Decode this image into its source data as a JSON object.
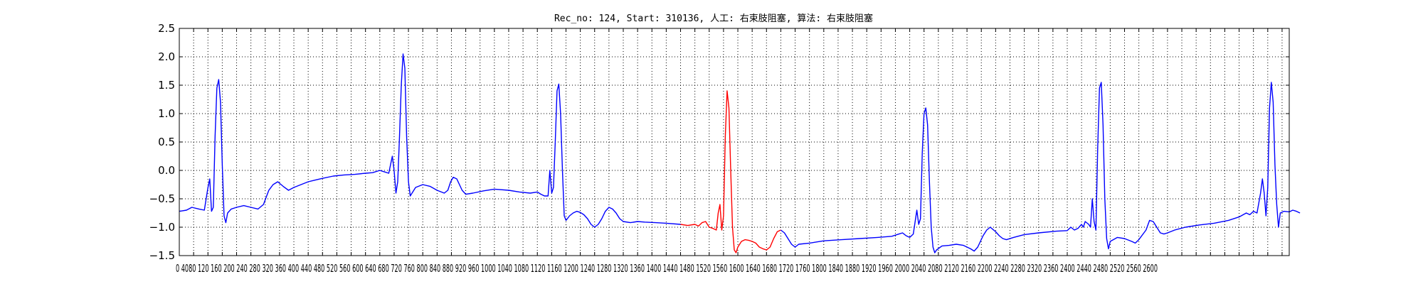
{
  "chart_data": {
    "type": "line",
    "title": "Rec_no: 124, Start: 310136, 人工: 右束肢阻塞, 算法: 右束肢阻塞",
    "xlabel": "",
    "ylabel": "",
    "xlim": [
      0,
      3100
    ],
    "ylim": [
      -1.5,
      2.5
    ],
    "grid": true,
    "y_ticks": [
      2.5,
      2.0,
      1.5,
      1.0,
      0.5,
      0.0,
      -0.5,
      -1.0,
      -1.5
    ],
    "y_tick_labels": [
      "2.5",
      "2.0",
      "1.5",
      "1.0",
      "0.5",
      "0.0",
      "−0.5",
      "−1.0",
      "−1.5"
    ],
    "x_ticks": [
      0,
      40,
      80,
      120,
      160,
      200,
      240,
      280,
      320,
      360,
      400,
      440,
      480,
      520,
      560,
      600,
      640,
      680,
      720,
      760,
      800,
      840,
      880,
      920,
      960,
      1000,
      1040,
      1080,
      1120,
      1160,
      1200,
      1240,
      1280,
      1320,
      1360,
      1400,
      1440,
      1480,
      1520,
      1560,
      1600,
      1640,
      1680,
      1720,
      1760,
      1800,
      1840,
      1880,
      1920,
      1960,
      2000,
      2040,
      2080,
      2120,
      2160,
      2200,
      2240,
      2280,
      2320,
      2360,
      2400,
      2440,
      2480,
      2520,
      2560,
      2600,
      2640,
      2680,
      2720,
      2760,
      2800,
      2840,
      2880,
      2920,
      2960,
      3000,
      3040,
      3080
    ],
    "x_tick_label_text": "0 4080 120 160 200 240 280 320 360 400 440 480 520 560 600 640 680 720 760 800 840 880 920 960 1000 1040 1080 1120 1160 1200 1240 1280 1320 1360 1400 1440 1480 1520 1560 1600 1640 1680 1720 1760 1800 1840 1880 1920 1960 2000 2040 2080 2120 2160 2200 2240 2280 2320 2360 2400 2440 2480 2520 2560 2600",
    "series": [
      {
        "color": "#0000ff",
        "points": [
          [
            0,
            -0.72
          ],
          [
            20,
            -0.7
          ],
          [
            35,
            -0.65
          ],
          [
            55,
            -0.68
          ],
          [
            70,
            -0.7
          ],
          [
            80,
            -0.3
          ],
          [
            85,
            -0.15
          ],
          [
            90,
            -0.72
          ],
          [
            95,
            -0.65
          ],
          [
            100,
            0.6
          ],
          [
            105,
            1.45
          ],
          [
            110,
            1.6
          ],
          [
            115,
            1.2
          ],
          [
            120,
            0.1
          ],
          [
            125,
            -0.8
          ],
          [
            130,
            -0.92
          ],
          [
            135,
            -0.75
          ],
          [
            145,
            -0.68
          ],
          [
            160,
            -0.65
          ],
          [
            180,
            -0.62
          ],
          [
            200,
            -0.65
          ],
          [
            220,
            -0.68
          ],
          [
            235,
            -0.6
          ],
          [
            250,
            -0.35
          ],
          [
            262,
            -0.25
          ],
          [
            275,
            -0.2
          ],
          [
            290,
            -0.28
          ],
          [
            305,
            -0.35
          ],
          [
            320,
            -0.3
          ],
          [
            340,
            -0.25
          ],
          [
            360,
            -0.2
          ],
          [
            380,
            -0.17
          ],
          [
            400,
            -0.14
          ],
          [
            430,
            -0.1
          ],
          [
            460,
            -0.08
          ],
          [
            490,
            -0.07
          ],
          [
            520,
            -0.05
          ],
          [
            540,
            -0.04
          ],
          [
            560,
            0.0
          ],
          [
            570,
            -0.02
          ],
          [
            585,
            -0.05
          ],
          [
            590,
            0.1
          ],
          [
            595,
            0.25
          ],
          [
            600,
            0.0
          ],
          [
            605,
            -0.4
          ],
          [
            610,
            -0.2
          ],
          [
            615,
            0.6
          ],
          [
            620,
            1.5
          ],
          [
            625,
            2.05
          ],
          [
            630,
            1.8
          ],
          [
            635,
            0.6
          ],
          [
            640,
            -0.2
          ],
          [
            645,
            -0.45
          ],
          [
            650,
            -0.4
          ],
          [
            660,
            -0.3
          ],
          [
            680,
            -0.25
          ],
          [
            700,
            -0.28
          ],
          [
            720,
            -0.35
          ],
          [
            740,
            -0.4
          ],
          [
            750,
            -0.35
          ],
          [
            758,
            -0.2
          ],
          [
            765,
            -0.12
          ],
          [
            775,
            -0.15
          ],
          [
            790,
            -0.35
          ],
          [
            800,
            -0.42
          ],
          [
            820,
            -0.4
          ],
          [
            850,
            -0.36
          ],
          [
            880,
            -0.33
          ],
          [
            920,
            -0.35
          ],
          [
            950,
            -0.38
          ],
          [
            980,
            -0.4
          ],
          [
            1000,
            -0.38
          ],
          [
            1010,
            -0.42
          ],
          [
            1020,
            -0.45
          ],
          [
            1030,
            -0.45
          ],
          [
            1035,
            0.0
          ],
          [
            1040,
            -0.4
          ],
          [
            1045,
            -0.3
          ],
          [
            1050,
            0.5
          ],
          [
            1055,
            1.4
          ],
          [
            1060,
            1.52
          ],
          [
            1065,
            1.0
          ],
          [
            1070,
            0.0
          ],
          [
            1075,
            -0.8
          ],
          [
            1080,
            -0.88
          ],
          [
            1090,
            -0.8
          ],
          [
            1100,
            -0.75
          ],
          [
            1110,
            -0.72
          ],
          [
            1120,
            -0.74
          ],
          [
            1130,
            -0.78
          ],
          [
            1140,
            -0.85
          ],
          [
            1150,
            -0.95
          ],
          [
            1160,
            -1.0
          ],
          [
            1170,
            -0.95
          ],
          [
            1180,
            -0.85
          ],
          [
            1190,
            -0.72
          ],
          [
            1200,
            -0.65
          ],
          [
            1210,
            -0.68
          ],
          [
            1220,
            -0.75
          ],
          [
            1230,
            -0.85
          ],
          [
            1240,
            -0.9
          ],
          [
            1260,
            -0.92
          ],
          [
            1280,
            -0.9
          ],
          [
            1300,
            -0.91
          ],
          [
            1330,
            -0.92
          ],
          [
            1360,
            -0.93
          ],
          [
            1400,
            -0.95
          ]
        ]
      },
      {
        "color": "#ff0000",
        "points": [
          [
            1400,
            -0.95
          ],
          [
            1420,
            -0.97
          ],
          [
            1440,
            -0.95
          ],
          [
            1450,
            -0.98
          ],
          [
            1460,
            -0.92
          ],
          [
            1470,
            -0.9
          ],
          [
            1480,
            -1.0
          ],
          [
            1490,
            -1.02
          ],
          [
            1500,
            -1.05
          ],
          [
            1505,
            -0.75
          ],
          [
            1510,
            -0.6
          ],
          [
            1515,
            -1.05
          ],
          [
            1520,
            -0.8
          ],
          [
            1525,
            0.6
          ],
          [
            1530,
            1.4
          ],
          [
            1535,
            1.1
          ],
          [
            1540,
            0.0
          ],
          [
            1545,
            -1.0
          ],
          [
            1550,
            -1.4
          ],
          [
            1555,
            -1.45
          ],
          [
            1560,
            -1.35
          ],
          [
            1570,
            -1.25
          ],
          [
            1580,
            -1.22
          ],
          [
            1590,
            -1.23
          ],
          [
            1600,
            -1.25
          ],
          [
            1610,
            -1.28
          ],
          [
            1620,
            -1.35
          ],
          [
            1630,
            -1.38
          ],
          [
            1640,
            -1.4
          ],
          [
            1650,
            -1.35
          ],
          [
            1660,
            -1.2
          ],
          [
            1670,
            -1.08
          ],
          [
            1680,
            -1.05
          ]
        ]
      },
      {
        "color": "#0000ff",
        "points": [
          [
            1680,
            -1.05
          ],
          [
            1690,
            -1.1
          ],
          [
            1700,
            -1.2
          ],
          [
            1710,
            -1.3
          ],
          [
            1720,
            -1.35
          ],
          [
            1730,
            -1.3
          ],
          [
            1760,
            -1.28
          ],
          [
            1800,
            -1.24
          ],
          [
            1850,
            -1.22
          ],
          [
            1900,
            -1.2
          ],
          [
            1950,
            -1.18
          ],
          [
            1990,
            -1.16
          ],
          [
            2010,
            -1.12
          ],
          [
            2020,
            -1.1
          ],
          [
            2030,
            -1.15
          ],
          [
            2040,
            -1.18
          ],
          [
            2050,
            -1.12
          ],
          [
            2060,
            -0.7
          ],
          [
            2065,
            -0.95
          ],
          [
            2070,
            -0.85
          ],
          [
            2075,
            0.3
          ],
          [
            2080,
            1.0
          ],
          [
            2085,
            1.1
          ],
          [
            2090,
            0.8
          ],
          [
            2095,
            -0.2
          ],
          [
            2100,
            -1.0
          ],
          [
            2105,
            -1.35
          ],
          [
            2110,
            -1.45
          ],
          [
            2115,
            -1.4
          ],
          [
            2130,
            -1.33
          ],
          [
            2150,
            -1.32
          ],
          [
            2170,
            -1.3
          ],
          [
            2190,
            -1.32
          ],
          [
            2210,
            -1.38
          ],
          [
            2220,
            -1.42
          ],
          [
            2230,
            -1.35
          ],
          [
            2245,
            -1.15
          ],
          [
            2255,
            -1.05
          ],
          [
            2265,
            -1.0
          ],
          [
            2280,
            -1.08
          ],
          [
            2290,
            -1.15
          ],
          [
            2300,
            -1.2
          ],
          [
            2310,
            -1.22
          ],
          [
            2330,
            -1.18
          ],
          [
            2360,
            -1.13
          ],
          [
            2400,
            -1.1
          ],
          [
            2450,
            -1.07
          ],
          [
            2480,
            -1.06
          ],
          [
            2490,
            -1.0
          ],
          [
            2500,
            -1.05
          ],
          [
            2510,
            -1.02
          ],
          [
            2520,
            -0.95
          ],
          [
            2525,
            -1.0
          ],
          [
            2530,
            -0.9
          ],
          [
            2540,
            -0.95
          ],
          [
            2545,
            -1.0
          ],
          [
            2550,
            -0.5
          ],
          [
            2555,
            -0.9
          ],
          [
            2560,
            -1.05
          ],
          [
            2565,
            0.4
          ],
          [
            2570,
            1.45
          ],
          [
            2575,
            1.55
          ],
          [
            2580,
            0.8
          ],
          [
            2585,
            -0.5
          ],
          [
            2590,
            -1.2
          ],
          [
            2595,
            -1.38
          ],
          [
            2600,
            -1.25
          ],
          [
            2620,
            -1.18
          ],
          [
            2640,
            -1.2
          ],
          [
            2660,
            -1.25
          ],
          [
            2670,
            -1.28
          ],
          [
            2680,
            -1.22
          ],
          [
            2700,
            -1.05
          ],
          [
            2710,
            -0.88
          ],
          [
            2720,
            -0.9
          ],
          [
            2730,
            -1.0
          ],
          [
            2740,
            -1.1
          ],
          [
            2750,
            -1.12
          ],
          [
            2760,
            -1.1
          ],
          [
            2780,
            -1.05
          ],
          [
            2810,
            -1.0
          ],
          [
            2850,
            -0.96
          ],
          [
            2890,
            -0.93
          ],
          [
            2930,
            -0.88
          ],
          [
            2960,
            -0.82
          ],
          [
            2980,
            -0.75
          ],
          [
            2990,
            -0.78
          ],
          [
            3000,
            -0.72
          ],
          [
            3010,
            -0.75
          ],
          [
            3020,
            -0.4
          ],
          [
            3025,
            -0.15
          ],
          [
            3030,
            -0.4
          ],
          [
            3035,
            -0.8
          ],
          [
            3040,
            -0.3
          ],
          [
            3045,
            1.1
          ],
          [
            3050,
            1.55
          ],
          [
            3055,
            1.2
          ],
          [
            3060,
            0.1
          ],
          [
            3065,
            -0.6
          ],
          [
            3070,
            -1.0
          ],
          [
            3075,
            -0.75
          ],
          [
            3085,
            -0.72
          ],
          [
            3100,
            -0.73
          ],
          [
            3110,
            -0.7
          ],
          [
            3120,
            -0.72
          ],
          [
            3130,
            -0.75
          ]
        ]
      }
    ]
  }
}
